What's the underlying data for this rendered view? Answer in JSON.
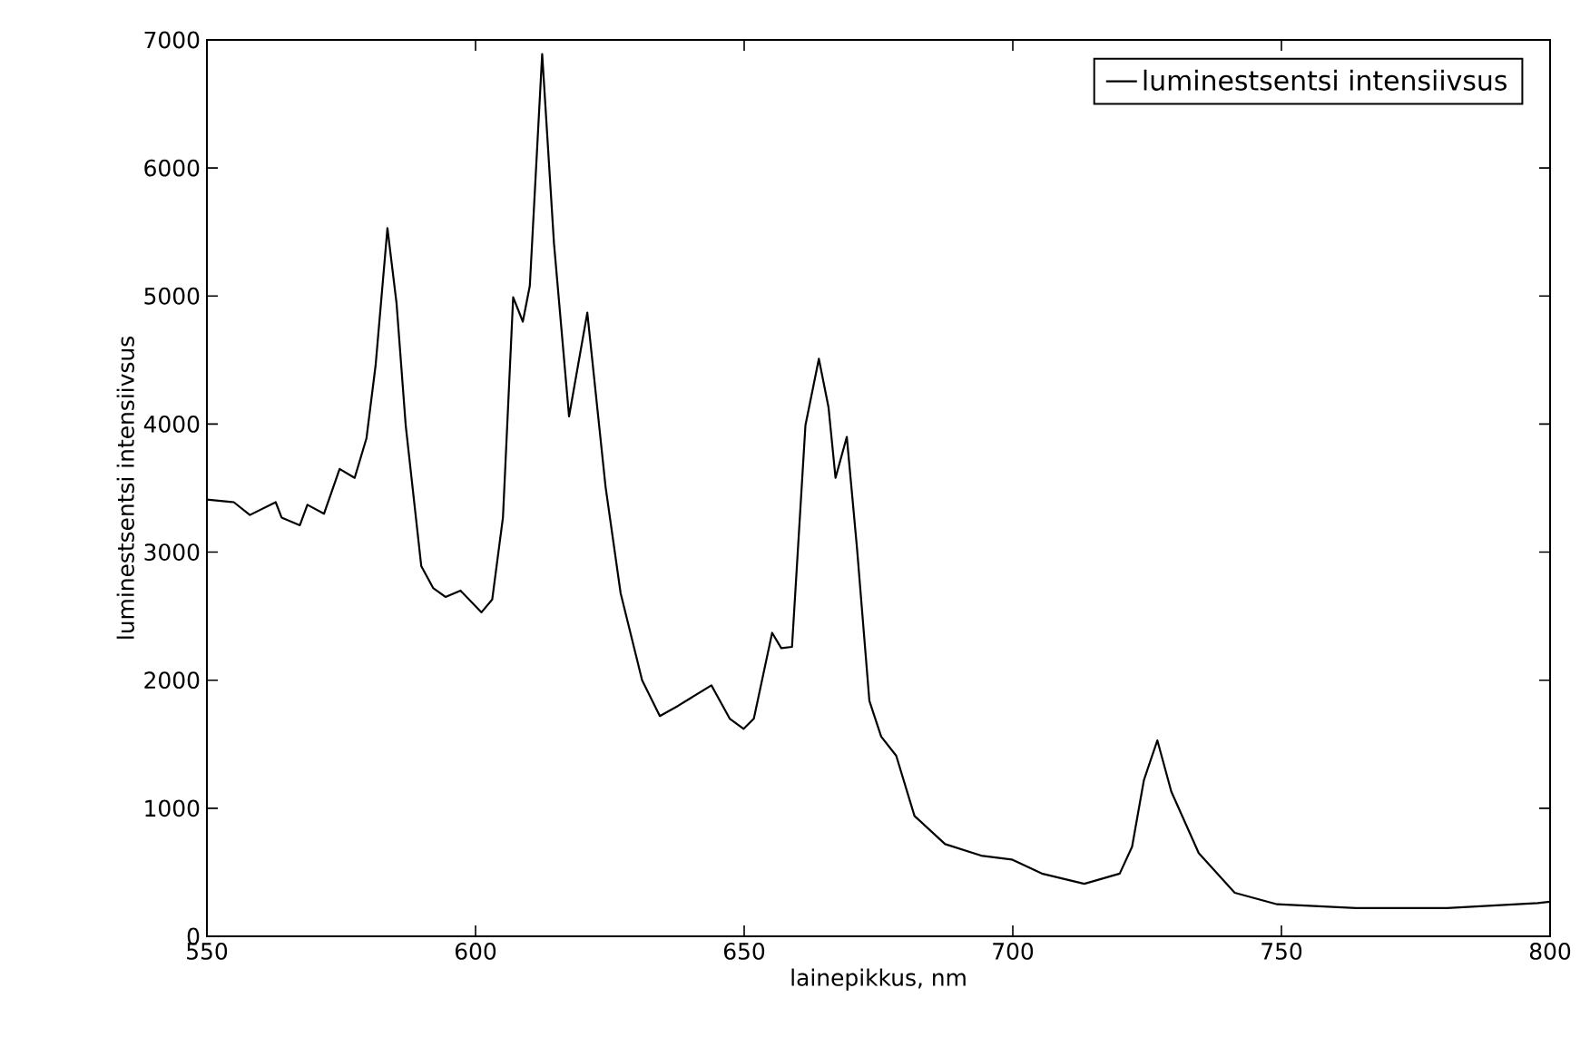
{
  "chart_data": {
    "type": "line",
    "xlabel": "lainepikkus, nm",
    "ylabel": "luminestsentsi intensiivsus",
    "xlim": [
      550,
      800
    ],
    "ylim": [
      0,
      7000
    ],
    "xticks": [
      550,
      600,
      650,
      700,
      750,
      800
    ],
    "yticks": [
      0,
      1000,
      2000,
      3000,
      4000,
      5000,
      6000,
      7000
    ],
    "grid": false,
    "legend": "top right",
    "marker": "none",
    "line_style": "solid",
    "series": [
      {
        "name": "luminestsentsi intensiivsus",
        "color": "#000000",
        "x": [
          550,
          555,
          558,
          562.8,
          563.9,
          567.3,
          568.7,
          571.8,
          574.7,
          577.5,
          579.7,
          581.4,
          583.6,
          585.3,
          587,
          589.9,
          592.1,
          594.4,
          597.2,
          601.1,
          603.1,
          605.1,
          607,
          608.8,
          610.1,
          612.4,
          614.6,
          617.4,
          620.8,
          624.2,
          627,
          631,
          634.3,
          637.7,
          643.9,
          647.3,
          649.9,
          651.8,
          655.2,
          656.9,
          658.9,
          661.4,
          663.9,
          665.7,
          667,
          669.1,
          671,
          673.3,
          675.5,
          678.3,
          681.7,
          687.4,
          694.1,
          699.8,
          705.4,
          713.3,
          719.9,
          722.2,
          724.4,
          726.9,
          729.5,
          734.6,
          741.3,
          749.2,
          763.9,
          780.8,
          797.7,
          800
        ],
        "values": [
          3410,
          3390,
          3290,
          3390,
          3270,
          3210,
          3370,
          3300,
          3650,
          3580,
          3890,
          4460,
          5530,
          4940,
          3990,
          2890,
          2720,
          2650,
          2700,
          2530,
          2630,
          3270,
          4990,
          4800,
          5080,
          6890,
          5410,
          4060,
          4870,
          3510,
          2680,
          2000,
          1720,
          1800,
          1960,
          1700,
          1620,
          1700,
          2370,
          2250,
          2260,
          3990,
          4510,
          4130,
          3580,
          3900,
          3030,
          1840,
          1560,
          1410,
          940,
          720,
          630,
          600,
          490,
          410,
          490,
          700,
          1220,
          1530,
          1130,
          650,
          340,
          250,
          220,
          220,
          260,
          270
        ]
      }
    ]
  }
}
